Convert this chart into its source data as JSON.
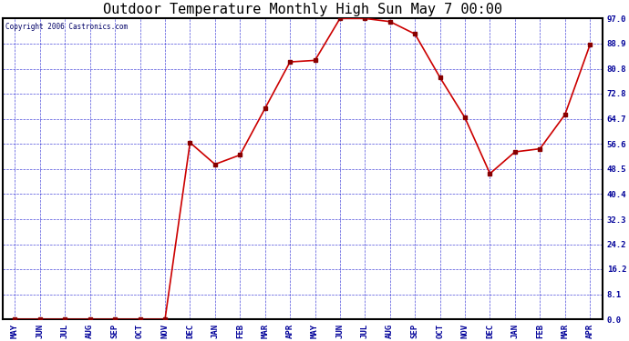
{
  "title": "Outdoor Temperature Monthly High Sun May 7 00:00",
  "copyright": "Copyright 2006 Castronics.com",
  "x_labels": [
    "MAY",
    "JUN",
    "JUL",
    "AUG",
    "SEP",
    "OCT",
    "NOV",
    "DEC",
    "JAN",
    "FEB",
    "MAR",
    "APR",
    "MAY",
    "JUN",
    "JUL",
    "AUG",
    "SEP",
    "OCT",
    "NOV",
    "DEC",
    "JAN",
    "FEB",
    "MAR",
    "APR"
  ],
  "y_values": [
    0.0,
    0.0,
    0.0,
    0.0,
    0.0,
    0.0,
    0.0,
    57.0,
    50.0,
    53.0,
    68.0,
    83.0,
    83.5,
    97.0,
    97.0,
    96.0,
    92.0,
    78.0,
    65.0,
    47.0,
    54.0,
    55.0,
    66.0,
    88.5
  ],
  "y_min": 0.0,
  "y_max": 97.0,
  "y_ticks": [
    0.0,
    8.1,
    16.2,
    24.2,
    32.3,
    40.4,
    48.5,
    56.6,
    64.7,
    72.8,
    80.8,
    88.9,
    97.0
  ],
  "line_color": "#cc0000",
  "marker_color": "#880000",
  "bg_color": "#ffffff",
  "plot_bg": "#ffffff",
  "grid_color": "#0000cc",
  "title_color": "#000000",
  "border_color": "#000000",
  "copyright_color": "#000066",
  "tick_label_color": "#000099"
}
